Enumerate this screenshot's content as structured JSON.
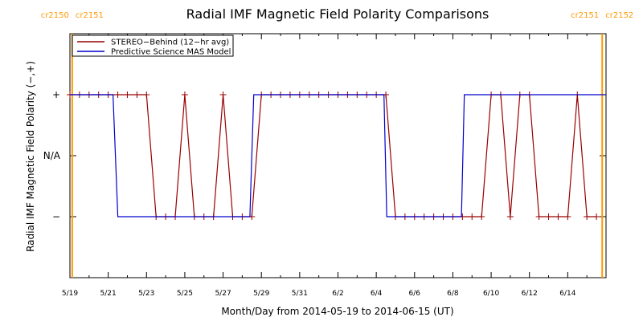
{
  "chart_data": {
    "type": "line",
    "title": "Radial IMF Magnetic Field Polarity Comparisons",
    "xlabel": "Month/Day from 2014-05-19 to 2014-06-15 (UT)",
    "ylabel": "Radial IMF Magnetic Field Polarity (−,+)",
    "x_range_days": [
      0,
      28
    ],
    "y_categories": [
      {
        "label": "+",
        "value": 1
      },
      {
        "label": "N/A",
        "value": 0
      },
      {
        "label": "−",
        "value": -1
      }
    ],
    "ylim": [
      -2,
      2
    ],
    "x_ticks": [
      {
        "label": "5/19",
        "day": 0
      },
      {
        "label": "5/21",
        "day": 2
      },
      {
        "label": "5/23",
        "day": 4
      },
      {
        "label": "5/25",
        "day": 6
      },
      {
        "label": "5/27",
        "day": 8
      },
      {
        "label": "5/29",
        "day": 10
      },
      {
        "label": "5/31",
        "day": 12
      },
      {
        "label": "6/2",
        "day": 14
      },
      {
        "label": "6/4",
        "day": 16
      },
      {
        "label": "6/6",
        "day": 18
      },
      {
        "label": "6/8",
        "day": 20
      },
      {
        "label": "6/10",
        "day": 22
      },
      {
        "label": "6/12",
        "day": 24
      },
      {
        "label": "6/14",
        "day": 26
      }
    ],
    "carrington_markers": [
      {
        "label_left": "cr2150",
        "label_right": "cr2151",
        "day": 0.12,
        "color": "#ff9900"
      },
      {
        "label_left": "cr2151",
        "label_right": "cr2152",
        "day": 27.8,
        "color": "#ff9900"
      }
    ],
    "legend": {
      "placement": "top-left"
    },
    "series": [
      {
        "name": "STEREO−Behind (12−hr avg)",
        "color": "#990000",
        "marker": "plus",
        "points": [
          [
            0,
            1
          ],
          [
            0.5,
            1
          ],
          [
            1,
            1
          ],
          [
            1.5,
            1
          ],
          [
            2,
            1
          ],
          [
            2.5,
            1
          ],
          [
            3,
            1
          ],
          [
            3.5,
            1
          ],
          [
            4,
            1
          ],
          [
            4.5,
            -1
          ],
          [
            5,
            -1
          ],
          [
            5.5,
            -1
          ],
          [
            6,
            1
          ],
          [
            6.5,
            -1
          ],
          [
            7,
            -1
          ],
          [
            7.5,
            -1
          ],
          [
            8,
            1
          ],
          [
            8.5,
            -1
          ],
          [
            9,
            -1
          ],
          [
            9.5,
            -1
          ],
          [
            10,
            1
          ],
          [
            10.5,
            1
          ],
          [
            11,
            1
          ],
          [
            11.5,
            1
          ],
          [
            12,
            1
          ],
          [
            12.5,
            1
          ],
          [
            13,
            1
          ],
          [
            13.5,
            1
          ],
          [
            14,
            1
          ],
          [
            14.5,
            1
          ],
          [
            15,
            1
          ],
          [
            15.5,
            1
          ],
          [
            16,
            1
          ],
          [
            16.5,
            1
          ],
          [
            17,
            -1
          ],
          [
            17.5,
            -1
          ],
          [
            18,
            -1
          ],
          [
            18.5,
            -1
          ],
          [
            19,
            -1
          ],
          [
            19.5,
            -1
          ],
          [
            20,
            -1
          ],
          [
            20.5,
            -1
          ],
          [
            21,
            -1
          ],
          [
            21.5,
            -1
          ],
          [
            22,
            1
          ],
          [
            22.5,
            1
          ],
          [
            23,
            -1
          ],
          [
            23.5,
            1
          ],
          [
            24,
            1
          ],
          [
            24.5,
            -1
          ],
          [
            25,
            -1
          ],
          [
            25.5,
            -1
          ],
          [
            26,
            -1
          ],
          [
            26.5,
            1
          ],
          [
            27,
            -1
          ],
          [
            27.5,
            -1
          ]
        ]
      },
      {
        "name": "Predictive Science MAS Model",
        "color": "#0000cc",
        "marker": "none",
        "points": [
          [
            0,
            1
          ],
          [
            2.25,
            1
          ],
          [
            2.5,
            -1
          ],
          [
            9.4,
            -1
          ],
          [
            9.6,
            1
          ],
          [
            16.4,
            1
          ],
          [
            16.55,
            -1
          ],
          [
            20.45,
            -1
          ],
          [
            20.6,
            1
          ],
          [
            28,
            1
          ]
        ]
      }
    ]
  }
}
